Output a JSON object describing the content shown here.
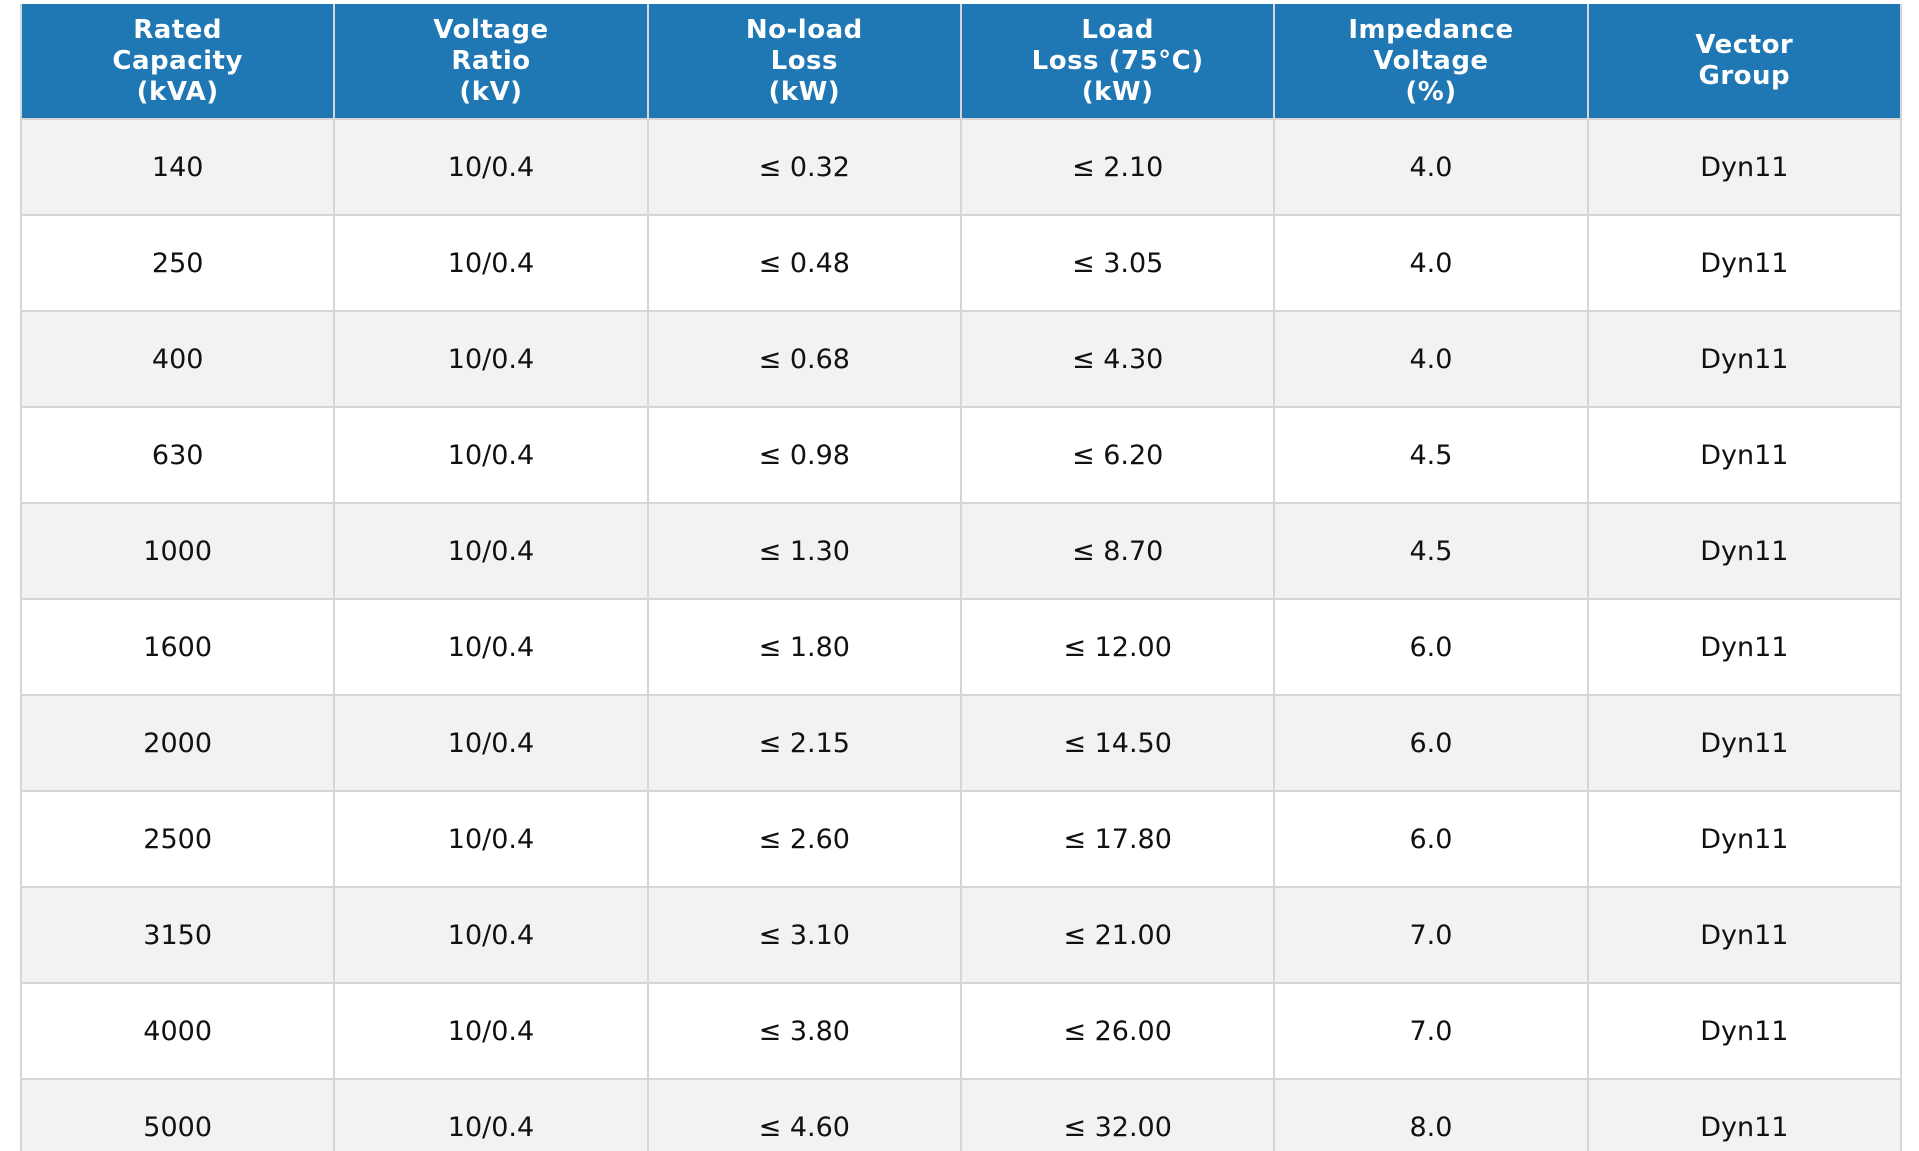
{
  "table": {
    "header": [
      [
        "Rated",
        "Capacity",
        "(kVA)"
      ],
      [
        "Voltage",
        "Ratio",
        "(kV)"
      ],
      [
        "No-load",
        "Loss",
        "(kW)"
      ],
      [
        "Load",
        "Loss (75°C)",
        "(kW)"
      ],
      [
        "Impedance",
        "Voltage",
        "(%)"
      ],
      [
        "Vector",
        "Group"
      ]
    ],
    "rows": [
      [
        "140",
        "10/0.4",
        "≤ 0.32",
        "≤ 2.10",
        "4.0",
        "Dyn11"
      ],
      [
        "250",
        "10/0.4",
        "≤ 0.48",
        "≤ 3.05",
        "4.0",
        "Dyn11"
      ],
      [
        "400",
        "10/0.4",
        "≤ 0.68",
        "≤ 4.30",
        "4.0",
        "Dyn11"
      ],
      [
        "630",
        "10/0.4",
        "≤ 0.98",
        "≤ 6.20",
        "4.5",
        "Dyn11"
      ],
      [
        "1000",
        "10/0.4",
        "≤ 1.30",
        "≤ 8.70",
        "4.5",
        "Dyn11"
      ],
      [
        "1600",
        "10/0.4",
        "≤ 1.80",
        "≤ 12.00",
        "6.0",
        "Dyn11"
      ],
      [
        "2000",
        "10/0.4",
        "≤ 2.15",
        "≤ 14.50",
        "6.0",
        "Dyn11"
      ],
      [
        "2500",
        "10/0.4",
        "≤ 2.60",
        "≤ 17.80",
        "6.0",
        "Dyn11"
      ],
      [
        "3150",
        "10/0.4",
        "≤ 3.10",
        "≤ 21.00",
        "7.0",
        "Dyn11"
      ],
      [
        "4000",
        "10/0.4",
        "≤ 3.80",
        "≤ 26.00",
        "7.0",
        "Dyn11"
      ],
      [
        "5000",
        "10/0.4",
        "≤ 4.60",
        "≤ 32.00",
        "8.0",
        "Dyn11"
      ]
    ]
  }
}
